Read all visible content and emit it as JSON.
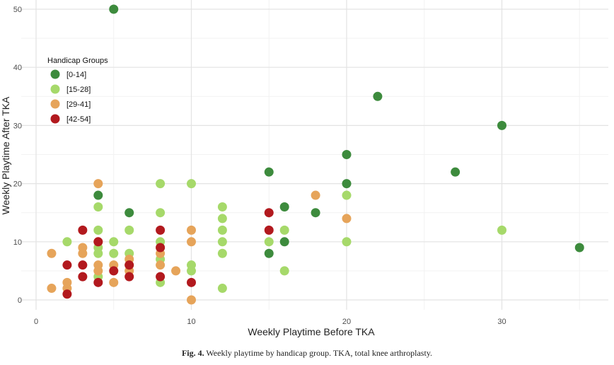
{
  "chart_data": {
    "type": "scatter",
    "xlabel": "Weekly Playtime Before TKA",
    "ylabel": "Weekly Playtime After TKA",
    "xlim": [
      0,
      36
    ],
    "ylim": [
      -1.5,
      51
    ],
    "xticks": [
      0,
      10,
      20,
      30
    ],
    "yticks": [
      0,
      10,
      20,
      30,
      40,
      50
    ],
    "grid": true,
    "legend": {
      "title": "Handicap Groups",
      "position": "top-left"
    },
    "series": [
      {
        "name": "[0-14]",
        "color": "#3d8b3d",
        "points": [
          [
            5,
            50
          ],
          [
            22,
            35
          ],
          [
            30,
            30
          ],
          [
            20,
            25
          ],
          [
            27,
            22
          ],
          [
            15,
            22
          ],
          [
            20,
            20
          ],
          [
            4,
            18
          ],
          [
            6,
            15
          ],
          [
            16,
            16
          ],
          [
            18,
            15
          ],
          [
            35,
            9
          ],
          [
            16,
            10
          ],
          [
            15,
            8
          ]
        ]
      },
      {
        "name": "[15-28]",
        "color": "#a6d96a",
        "points": [
          [
            8,
            20
          ],
          [
            10,
            20
          ],
          [
            4,
            16
          ],
          [
            8,
            15
          ],
          [
            12,
            16
          ],
          [
            12,
            14
          ],
          [
            4,
            12
          ],
          [
            6,
            12
          ],
          [
            12,
            12
          ],
          [
            16,
            12
          ],
          [
            30,
            12
          ],
          [
            20,
            18
          ],
          [
            2,
            10
          ],
          [
            5,
            10
          ],
          [
            8,
            10
          ],
          [
            12,
            10
          ],
          [
            15,
            10
          ],
          [
            20,
            10
          ],
          [
            4,
            9
          ],
          [
            8,
            9
          ],
          [
            4,
            8
          ],
          [
            5,
            8
          ],
          [
            6,
            8
          ],
          [
            12,
            8
          ],
          [
            8,
            7
          ],
          [
            10,
            6
          ],
          [
            10,
            5
          ],
          [
            16,
            5
          ],
          [
            4,
            4
          ],
          [
            8,
            3
          ],
          [
            12,
            2
          ]
        ]
      },
      {
        "name": "[29-41]",
        "color": "#e6a45a",
        "points": [
          [
            4,
            20
          ],
          [
            18,
            18
          ],
          [
            20,
            14
          ],
          [
            10,
            12
          ],
          [
            4,
            10
          ],
          [
            10,
            10
          ],
          [
            3,
            9
          ],
          [
            1,
            8
          ],
          [
            3,
            8
          ],
          [
            8,
            8
          ],
          [
            6,
            7
          ],
          [
            4,
            6
          ],
          [
            5,
            6
          ],
          [
            6,
            6
          ],
          [
            8,
            6
          ],
          [
            4,
            5
          ],
          [
            6,
            5
          ],
          [
            9,
            5
          ],
          [
            2,
            3
          ],
          [
            5,
            3
          ],
          [
            1,
            2
          ],
          [
            2,
            2
          ],
          [
            10,
            0
          ]
        ]
      },
      {
        "name": "[42-54]",
        "color": "#b2191e",
        "points": [
          [
            3,
            12
          ],
          [
            8,
            12
          ],
          [
            15,
            12
          ],
          [
            15,
            15
          ],
          [
            4,
            10
          ],
          [
            8,
            9
          ],
          [
            2,
            6
          ],
          [
            3,
            6
          ],
          [
            6,
            6
          ],
          [
            5,
            5
          ],
          [
            3,
            4
          ],
          [
            6,
            4
          ],
          [
            8,
            4
          ],
          [
            4,
            3
          ],
          [
            10,
            3
          ],
          [
            2,
            1
          ]
        ]
      }
    ]
  },
  "caption": {
    "label": "Fig. 4.",
    "text": "Weekly playtime by handicap group. TKA, total knee arthroplasty."
  }
}
